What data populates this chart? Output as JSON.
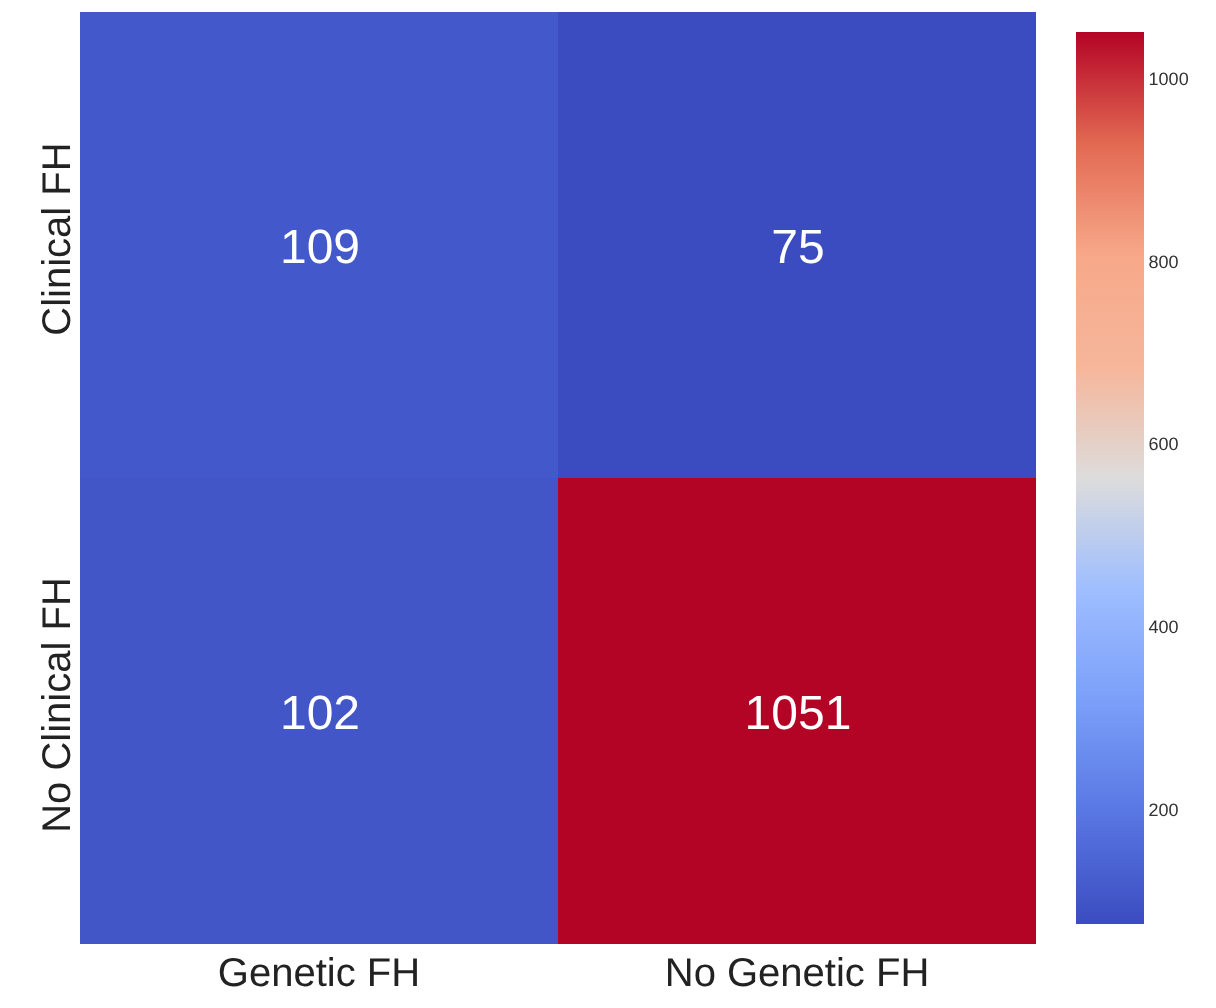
{
  "chart_data": {
    "type": "heatmap",
    "categories": [
      "Genetic FH",
      "No Genetic FH"
    ],
    "y_categories": [
      "Clinical FH",
      "No Clinical FH"
    ],
    "cells": [
      [
        109,
        75
      ],
      [
        102,
        1051
      ]
    ],
    "data_labels": true,
    "clim": [
      75,
      1051
    ],
    "cticks": [
      200,
      400,
      600,
      800,
      1000
    ]
  }
}
